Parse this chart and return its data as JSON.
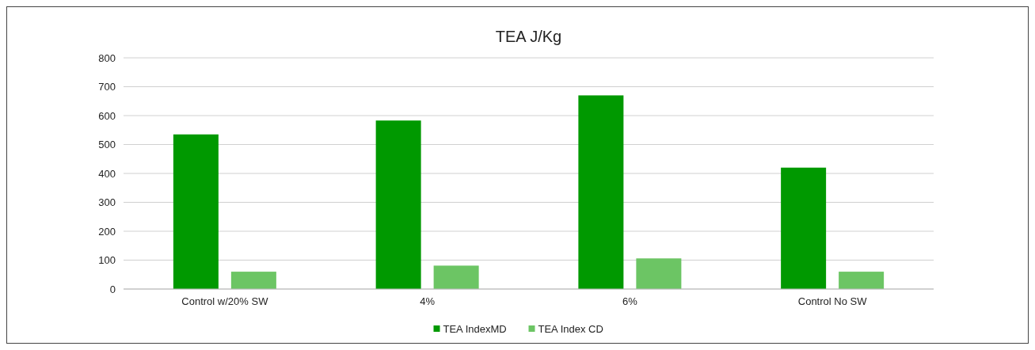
{
  "chart_data": {
    "type": "bar",
    "title": "TEA J/Kg",
    "categories": [
      "Control w/20% SW",
      "4%",
      "6%",
      "Control No SW"
    ],
    "series": [
      {
        "name": "TEA IndexMD",
        "color": "#009900",
        "values": [
          535,
          583,
          670,
          420
        ]
      },
      {
        "name": "TEA Index CD",
        "color": "#6cc564",
        "values": [
          60,
          81,
          106,
          60
        ]
      }
    ],
    "ylim": [
      0,
      800
    ],
    "yticks": [
      0,
      100,
      200,
      300,
      400,
      500,
      600,
      700,
      800
    ],
    "grid": "y",
    "legend": "bottom"
  }
}
